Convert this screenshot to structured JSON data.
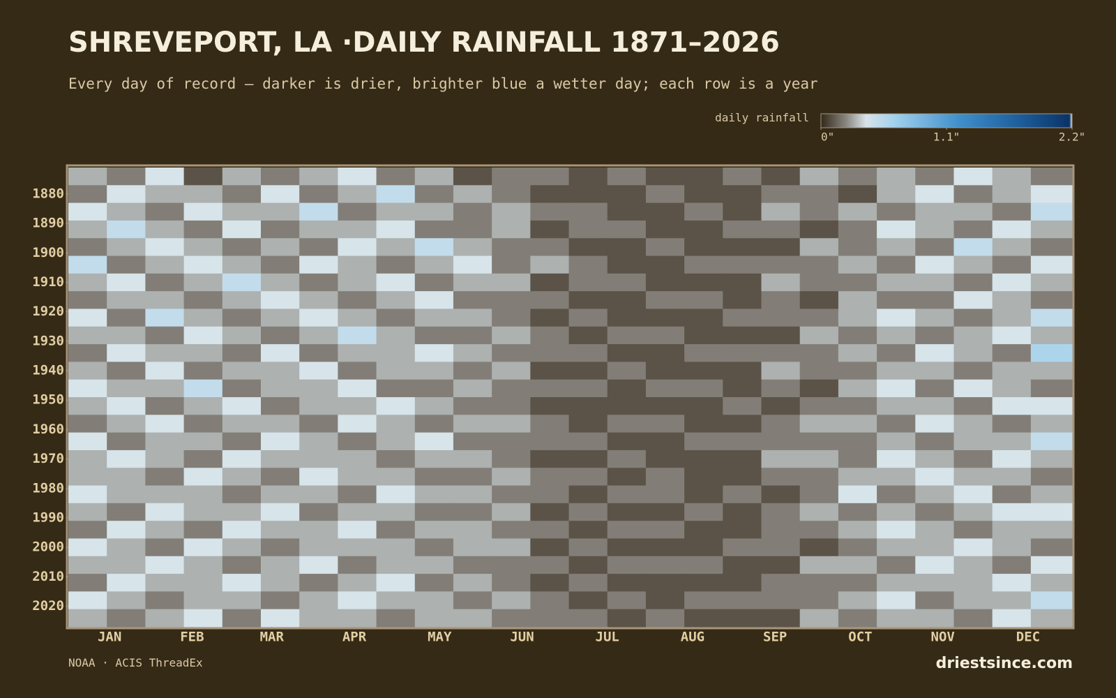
{
  "chart_data": {
    "type": "heatmap",
    "title": "SHREVEPORT, LA ·DAILY RAINFALL 1871–2026",
    "subtitle": "Every day of record — darker is drier, brighter blue a wetter day; each row is a year",
    "colorbar_label": "daily rainfall",
    "colorbar_lim": [
      0,
      2.2
    ],
    "colorbar_ticks": [
      {
        "value": 0,
        "label": "0\""
      },
      {
        "value": 1.1,
        "label": "1.1\""
      },
      {
        "value": 2.2,
        "label": "2.2\""
      }
    ],
    "xlim": [
      1,
      366
    ],
    "xticks": [
      {
        "value": 16,
        "label": "JAN"
      },
      {
        "value": 46,
        "label": "FEB"
      },
      {
        "value": 75,
        "label": "MAR"
      },
      {
        "value": 105,
        "label": "APR"
      },
      {
        "value": 136,
        "label": "MAY"
      },
      {
        "value": 166,
        "label": "JUN"
      },
      {
        "value": 197,
        "label": "JUL"
      },
      {
        "value": 228,
        "label": "AUG"
      },
      {
        "value": 258,
        "label": "SEP"
      },
      {
        "value": 289,
        "label": "OCT"
      },
      {
        "value": 319,
        "label": "NOV"
      },
      {
        "value": 350,
        "label": "DEC"
      }
    ],
    "ylim": [
      1871,
      2027
    ],
    "yticks": [
      1880,
      1890,
      1900,
      1910,
      1920,
      1930,
      1940,
      1950,
      1960,
      1970,
      1980,
      1990,
      2000,
      2010,
      2020
    ],
    "x": [
      1,
      15,
      29,
      43,
      57,
      71,
      85,
      99,
      113,
      127,
      141,
      155,
      169,
      183,
      197,
      211,
      225,
      239,
      253,
      267,
      281,
      295,
      309,
      323,
      337,
      351
    ],
    "y": [
      1871,
      1877,
      1883,
      1889,
      1895,
      1901,
      1907,
      1913,
      1919,
      1925,
      1931,
      1937,
      1943,
      1949,
      1955,
      1961,
      1967,
      1973,
      1979,
      1985,
      1991,
      1997,
      2003,
      2009,
      2015,
      2021
    ],
    "values": [
      [
        0.3,
        0.2,
        0.4,
        0.1,
        0.3,
        0.2,
        0.3,
        0.4,
        0.2,
        0.3,
        0.1,
        0.2,
        0.2,
        0.1,
        0.2,
        0.1,
        0.1,
        0.2,
        0.1,
        0.3,
        0.2,
        0.3,
        0.2,
        0.4,
        0.3,
        0.2
      ],
      [
        0.2,
        0.4,
        0.3,
        0.3,
        0.2,
        0.4,
        0.2,
        0.3,
        0.5,
        0.2,
        0.3,
        0.2,
        0.1,
        0.1,
        0.1,
        0.2,
        0.1,
        0.1,
        0.2,
        0.2,
        0.1,
        0.3,
        0.4,
        0.2,
        0.3,
        0.4
      ],
      [
        0.4,
        0.3,
        0.2,
        0.4,
        0.3,
        0.3,
        0.5,
        0.2,
        0.3,
        0.3,
        0.2,
        0.3,
        0.2,
        0.2,
        0.1,
        0.1,
        0.2,
        0.1,
        0.3,
        0.2,
        0.3,
        0.2,
        0.3,
        0.3,
        0.2,
        0.5
      ],
      [
        0.3,
        0.5,
        0.3,
        0.2,
        0.4,
        0.2,
        0.3,
        0.3,
        0.4,
        0.2,
        0.2,
        0.3,
        0.1,
        0.2,
        0.2,
        0.1,
        0.1,
        0.2,
        0.2,
        0.1,
        0.2,
        0.4,
        0.3,
        0.2,
        0.4,
        0.3
      ],
      [
        0.2,
        0.3,
        0.4,
        0.3,
        0.2,
        0.3,
        0.2,
        0.4,
        0.3,
        0.5,
        0.3,
        0.2,
        0.2,
        0.1,
        0.1,
        0.2,
        0.1,
        0.1,
        0.1,
        0.3,
        0.2,
        0.3,
        0.2,
        0.5,
        0.3,
        0.2
      ],
      [
        0.5,
        0.2,
        0.3,
        0.4,
        0.3,
        0.2,
        0.4,
        0.3,
        0.2,
        0.3,
        0.4,
        0.2,
        0.3,
        0.2,
        0.1,
        0.1,
        0.2,
        0.2,
        0.2,
        0.2,
        0.3,
        0.2,
        0.4,
        0.3,
        0.2,
        0.4
      ],
      [
        0.3,
        0.4,
        0.2,
        0.3,
        0.5,
        0.3,
        0.2,
        0.3,
        0.4,
        0.2,
        0.3,
        0.3,
        0.1,
        0.2,
        0.2,
        0.1,
        0.1,
        0.1,
        0.3,
        0.2,
        0.2,
        0.3,
        0.3,
        0.2,
        0.4,
        0.3
      ],
      [
        0.2,
        0.3,
        0.3,
        0.2,
        0.3,
        0.4,
        0.3,
        0.2,
        0.3,
        0.4,
        0.2,
        0.2,
        0.2,
        0.1,
        0.1,
        0.2,
        0.2,
        0.1,
        0.2,
        0.1,
        0.3,
        0.2,
        0.2,
        0.4,
        0.3,
        0.2
      ],
      [
        0.4,
        0.2,
        0.5,
        0.3,
        0.2,
        0.3,
        0.4,
        0.3,
        0.2,
        0.3,
        0.3,
        0.2,
        0.1,
        0.2,
        0.1,
        0.1,
        0.1,
        0.2,
        0.2,
        0.2,
        0.3,
        0.4,
        0.3,
        0.2,
        0.3,
        0.5
      ],
      [
        0.3,
        0.3,
        0.2,
        0.4,
        0.3,
        0.2,
        0.3,
        0.5,
        0.3,
        0.2,
        0.2,
        0.3,
        0.2,
        0.1,
        0.2,
        0.2,
        0.1,
        0.1,
        0.1,
        0.3,
        0.2,
        0.3,
        0.2,
        0.3,
        0.4,
        0.3
      ],
      [
        0.2,
        0.4,
        0.3,
        0.3,
        0.2,
        0.4,
        0.2,
        0.3,
        0.3,
        0.4,
        0.3,
        0.2,
        0.2,
        0.2,
        0.1,
        0.1,
        0.2,
        0.2,
        0.2,
        0.2,
        0.3,
        0.2,
        0.4,
        0.3,
        0.2,
        0.6
      ],
      [
        0.3,
        0.2,
        0.4,
        0.2,
        0.3,
        0.3,
        0.4,
        0.2,
        0.3,
        0.3,
        0.2,
        0.3,
        0.1,
        0.1,
        0.2,
        0.1,
        0.1,
        0.1,
        0.3,
        0.2,
        0.2,
        0.3,
        0.3,
        0.2,
        0.3,
        0.3
      ],
      [
        0.4,
        0.3,
        0.3,
        0.5,
        0.2,
        0.3,
        0.3,
        0.4,
        0.2,
        0.2,
        0.3,
        0.2,
        0.2,
        0.2,
        0.1,
        0.2,
        0.2,
        0.1,
        0.2,
        0.1,
        0.3,
        0.4,
        0.2,
        0.4,
        0.3,
        0.2
      ],
      [
        0.3,
        0.4,
        0.2,
        0.3,
        0.4,
        0.2,
        0.3,
        0.3,
        0.4,
        0.3,
        0.2,
        0.2,
        0.1,
        0.1,
        0.1,
        0.1,
        0.1,
        0.2,
        0.1,
        0.2,
        0.2,
        0.3,
        0.3,
        0.2,
        0.4,
        0.4
      ],
      [
        0.2,
        0.3,
        0.4,
        0.2,
        0.3,
        0.3,
        0.2,
        0.4,
        0.3,
        0.2,
        0.3,
        0.3,
        0.2,
        0.1,
        0.2,
        0.2,
        0.1,
        0.1,
        0.2,
        0.3,
        0.3,
        0.2,
        0.4,
        0.3,
        0.2,
        0.3
      ],
      [
        0.4,
        0.2,
        0.3,
        0.3,
        0.2,
        0.4,
        0.3,
        0.2,
        0.3,
        0.4,
        0.2,
        0.2,
        0.2,
        0.2,
        0.1,
        0.1,
        0.2,
        0.2,
        0.2,
        0.2,
        0.2,
        0.3,
        0.2,
        0.3,
        0.3,
        0.5
      ],
      [
        0.3,
        0.4,
        0.3,
        0.2,
        0.4,
        0.3,
        0.3,
        0.3,
        0.2,
        0.3,
        0.3,
        0.2,
        0.1,
        0.1,
        0.2,
        0.1,
        0.1,
        0.1,
        0.3,
        0.3,
        0.2,
        0.4,
        0.3,
        0.2,
        0.4,
        0.3
      ],
      [
        0.3,
        0.3,
        0.2,
        0.4,
        0.3,
        0.2,
        0.4,
        0.3,
        0.3,
        0.2,
        0.2,
        0.3,
        0.2,
        0.2,
        0.1,
        0.2,
        0.1,
        0.1,
        0.2,
        0.2,
        0.3,
        0.3,
        0.4,
        0.3,
        0.3,
        0.2
      ],
      [
        0.4,
        0.3,
        0.3,
        0.3,
        0.2,
        0.3,
        0.3,
        0.2,
        0.4,
        0.3,
        0.3,
        0.2,
        0.2,
        0.1,
        0.2,
        0.2,
        0.1,
        0.2,
        0.1,
        0.2,
        0.4,
        0.2,
        0.3,
        0.4,
        0.2,
        0.3
      ],
      [
        0.3,
        0.2,
        0.4,
        0.3,
        0.3,
        0.4,
        0.2,
        0.3,
        0.3,
        0.2,
        0.2,
        0.3,
        0.1,
        0.2,
        0.1,
        0.1,
        0.2,
        0.1,
        0.2,
        0.3,
        0.2,
        0.3,
        0.2,
        0.3,
        0.4,
        0.4
      ],
      [
        0.2,
        0.4,
        0.3,
        0.2,
        0.4,
        0.3,
        0.3,
        0.4,
        0.2,
        0.3,
        0.3,
        0.2,
        0.2,
        0.1,
        0.2,
        0.2,
        0.1,
        0.1,
        0.2,
        0.2,
        0.3,
        0.4,
        0.3,
        0.2,
        0.3,
        0.3
      ],
      [
        0.4,
        0.3,
        0.2,
        0.4,
        0.3,
        0.2,
        0.3,
        0.3,
        0.3,
        0.2,
        0.3,
        0.3,
        0.1,
        0.2,
        0.1,
        0.1,
        0.1,
        0.2,
        0.2,
        0.1,
        0.2,
        0.3,
        0.3,
        0.4,
        0.3,
        0.2
      ],
      [
        0.3,
        0.3,
        0.4,
        0.3,
        0.2,
        0.3,
        0.4,
        0.2,
        0.3,
        0.3,
        0.2,
        0.2,
        0.2,
        0.1,
        0.2,
        0.2,
        0.2,
        0.1,
        0.1,
        0.3,
        0.3,
        0.2,
        0.4,
        0.3,
        0.2,
        0.4
      ],
      [
        0.2,
        0.4,
        0.3,
        0.3,
        0.4,
        0.3,
        0.2,
        0.3,
        0.4,
        0.2,
        0.3,
        0.2,
        0.1,
        0.2,
        0.1,
        0.1,
        0.1,
        0.1,
        0.2,
        0.2,
        0.2,
        0.3,
        0.3,
        0.3,
        0.4,
        0.3
      ],
      [
        0.4,
        0.3,
        0.2,
        0.3,
        0.3,
        0.2,
        0.3,
        0.4,
        0.3,
        0.3,
        0.2,
        0.3,
        0.2,
        0.1,
        0.2,
        0.1,
        0.2,
        0.2,
        0.2,
        0.2,
        0.3,
        0.4,
        0.2,
        0.3,
        0.3,
        0.5
      ],
      [
        0.3,
        0.2,
        0.3,
        0.4,
        0.2,
        0.4,
        0.3,
        0.3,
        0.2,
        0.3,
        0.3,
        0.2,
        0.2,
        0.2,
        0.1,
        0.2,
        0.1,
        0.1,
        0.1,
        0.3,
        0.2,
        0.3,
        0.3,
        0.2,
        0.4,
        0.3
      ]
    ],
    "source": "NOAA · ACIS ThreadEx",
    "brand": "driestsince.com"
  }
}
